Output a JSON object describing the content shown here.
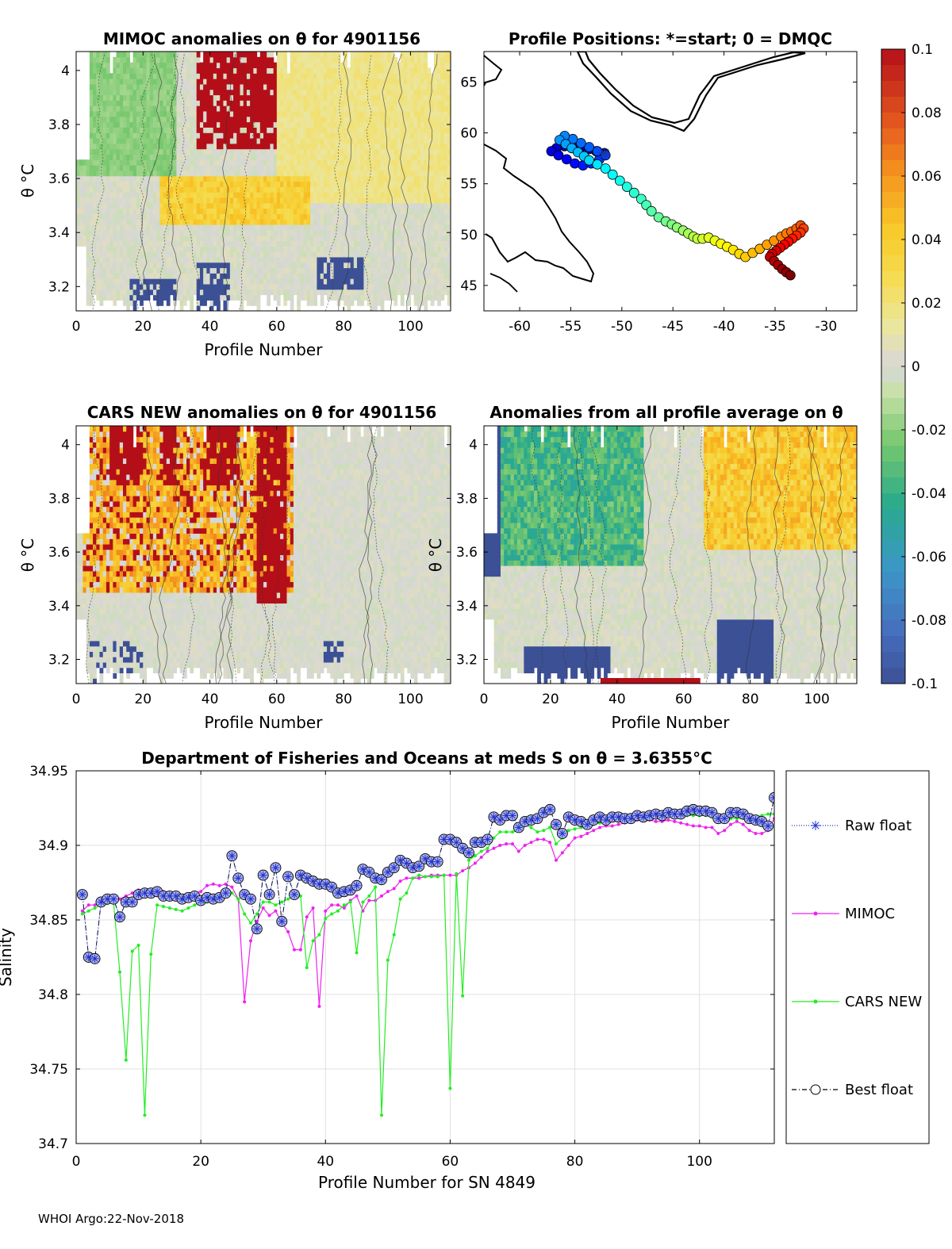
{
  "chart_data": [
    {
      "type": "heatmap",
      "title": "MIMOC anomalies on θ  for 4901156",
      "xlabel": "Profile Number",
      "ylabel": "θ °C",
      "xlim": [
        0,
        112
      ],
      "ylim": [
        3.11,
        4.07
      ],
      "xticks": [
        0,
        20,
        40,
        60,
        80,
        100
      ],
      "yticks": [
        3.2,
        3.4,
        3.6,
        3.8,
        4
      ],
      "description": "gridded anomaly field (profile number × theta), colored on shared colorbar",
      "warm_band": {
        "x_range": [
          25,
          70
        ],
        "theta_center": 3.52,
        "value": 0.04
      },
      "hot_patches": [
        {
          "x_range": [
            36,
            60
          ],
          "theta_range": [
            3.7,
            4.07
          ],
          "value": 0.1
        }
      ],
      "cold_patches": [
        {
          "x_range": [
            16,
            30
          ],
          "theta_range": [
            3.11,
            3.22
          ],
          "value": -0.1
        },
        {
          "x_range": [
            36,
            46
          ],
          "theta_range": [
            3.11,
            3.28
          ],
          "value": -0.1
        },
        {
          "x_range": [
            72,
            86
          ],
          "theta_range": [
            3.18,
            3.3
          ],
          "value": -0.1
        }
      ]
    },
    {
      "type": "scatter",
      "title": "Profile Positions: *=start; 0 = DMQC",
      "xlim": [
        -63.5,
        -27
      ],
      "ylim": [
        42.5,
        68
      ],
      "xticks": [
        -60,
        -55,
        -50,
        -45,
        -40,
        -35,
        -30
      ],
      "yticks": [
        45,
        50,
        55,
        60,
        65
      ],
      "x": [
        -51.7,
        -52.5,
        -53.2,
        -54,
        -54.8,
        -55.6,
        -56.4,
        -56.9,
        -56.2,
        -55.4,
        -54.6,
        -53.8,
        -53,
        -52.2,
        -51.6,
        -52.4,
        -53.2,
        -54,
        -54.8,
        -55.6,
        -56.1,
        -55.5,
        -54.9,
        -54.3,
        -53.7,
        -53.2,
        -52.4,
        -51.6,
        -50.9,
        -50.2,
        -49.5,
        -48.8,
        -48.1,
        -47.6,
        -47.1,
        -46.4,
        -45.7,
        -45.1,
        -44.6,
        -44,
        -43.5,
        -43,
        -42.6,
        -42.1,
        -41.5,
        -40.9,
        -40.3,
        -39.7,
        -39.1,
        -38.5,
        -37.9,
        -37.2,
        -36.5,
        -35.8,
        -35.1,
        -34.4,
        -33.9,
        -33.4,
        -32.9,
        -32.5,
        -32.2,
        -32.5,
        -32.9,
        -33.3,
        -33.7,
        -34.1,
        -34.5,
        -34.9,
        -35.3,
        -35.5,
        -35.1,
        -34.7,
        -34.3,
        -33.9,
        -33.5
      ],
      "y": [
        58,
        58.2,
        58.4,
        58.6,
        58.8,
        58.7,
        58.5,
        58.2,
        57.8,
        57.4,
        57,
        56.8,
        57,
        57.4,
        57.8,
        58.2,
        58.6,
        59,
        59.4,
        59.7,
        59.3,
        58.9,
        58.5,
        58.1,
        57.7,
        57.3,
        56.9,
        56.5,
        55.9,
        55.3,
        54.7,
        54.1,
        53.5,
        52.9,
        52.3,
        51.7,
        51.3,
        51,
        50.7,
        50.4,
        50.1,
        49.8,
        49.6,
        49.6,
        49.7,
        49.4,
        49.1,
        48.8,
        48.5,
        48.1,
        47.8,
        48.2,
        48.6,
        49,
        49.4,
        49.8,
        50.1,
        50.3,
        50.6,
        50.9,
        50.6,
        50.2,
        49.9,
        49.6,
        49.3,
        49,
        48.7,
        48.4,
        48.1,
        47.8,
        47.4,
        47,
        46.6,
        46.3,
        46
      ],
      "start_marker": [
        -51.7,
        58
      ],
      "color_by": "profile number"
    },
    {
      "type": "heatmap",
      "title": "CARS NEW anomalies on θ for 4901156",
      "xlabel": "Profile Number",
      "ylabel": "θ °C",
      "xlim": [
        0,
        112
      ],
      "ylim": [
        3.11,
        4.07
      ],
      "xticks": [
        0,
        20,
        40,
        60,
        80,
        100
      ],
      "yticks": [
        3.2,
        3.4,
        3.6,
        3.8,
        4
      ],
      "description": "gridded anomaly field with strong warm anomalies above theta 3.45 for profiles 2-65",
      "warm_band": {
        "x_range": [
          2,
          65
        ],
        "theta_range": [
          3.45,
          4.07
        ],
        "value": 0.05
      },
      "hot_patches": [
        {
          "x_range": [
            10,
            20
          ],
          "theta_range": [
            3.85,
            4.07
          ],
          "value": 0.1
        },
        {
          "x_range": [
            25,
            30
          ],
          "theta_range": [
            3.85,
            4.07
          ],
          "value": 0.1
        },
        {
          "x_range": [
            38,
            48
          ],
          "theta_range": [
            3.85,
            4.07
          ],
          "value": 0.1
        },
        {
          "x_range": [
            54,
            63
          ],
          "theta_range": [
            3.42,
            4.07
          ],
          "value": 0.1
        }
      ],
      "cold_patches": [
        {
          "x_range": [
            74,
            80
          ],
          "theta_range": [
            3.18,
            3.27
          ],
          "value": -0.1
        }
      ]
    },
    {
      "type": "heatmap",
      "title": "Anomalies from all profile average on θ",
      "xlabel": "Profile Number",
      "ylabel": "θ °C",
      "xlim": [
        0,
        112
      ],
      "ylim": [
        3.11,
        4.07
      ],
      "xticks": [
        0,
        20,
        40,
        60,
        80,
        100
      ],
      "yticks": [
        3.2,
        3.4,
        3.6,
        3.8,
        4
      ],
      "description": "negative anomalies (green) for profiles 2-48 above theta 3.55, positive (yellow/orange) for profiles 68-112 above theta 3.6",
      "green_region": {
        "x_range": [
          2,
          48
        ],
        "theta_range": [
          3.55,
          4.07
        ],
        "value": -0.03
      },
      "warm_region": {
        "x_range": [
          66,
          112
        ],
        "theta_range": [
          3.6,
          4.07
        ],
        "value": 0.04
      },
      "cold_region": {
        "x_range": [
          70,
          87
        ],
        "theta_range": [
          3.11,
          3.35
        ],
        "value": -0.1
      }
    },
    {
      "type": "line",
      "title": "Department of Fisheries and Oceans at meds S on θ = 3.6355°C",
      "xlabel": "Profile Number for SN 4849",
      "ylabel": "Salinity",
      "xlim": [
        0,
        112
      ],
      "ylim": [
        34.7,
        34.95
      ],
      "xticks": [
        0,
        20,
        40,
        60,
        80,
        100
      ],
      "yticks": [
        34.7,
        34.75,
        34.8,
        34.85,
        34.9,
        34.95
      ],
      "grid": true,
      "legend_position": "right-outside",
      "x": [
        1,
        2,
        3,
        4,
        5,
        6,
        7,
        8,
        9,
        10,
        11,
        12,
        13,
        14,
        15,
        16,
        17,
        18,
        19,
        20,
        21,
        22,
        23,
        24,
        25,
        26,
        27,
        28,
        29,
        30,
        31,
        32,
        33,
        34,
        35,
        36,
        37,
        38,
        39,
        40,
        41,
        42,
        43,
        44,
        45,
        46,
        47,
        48,
        49,
        50,
        51,
        52,
        53,
        54,
        55,
        56,
        57,
        58,
        59,
        60,
        61,
        62,
        63,
        64,
        65,
        66,
        67,
        68,
        69,
        70,
        71,
        72,
        73,
        74,
        75,
        76,
        77,
        78,
        79,
        80,
        81,
        82,
        83,
        84,
        85,
        86,
        87,
        88,
        89,
        90,
        91,
        92,
        93,
        94,
        95,
        96,
        97,
        98,
        99,
        100,
        101,
        102,
        103,
        104,
        105,
        106,
        107,
        108,
        109,
        110,
        111,
        112
      ],
      "series": [
        {
          "name": "Raw float",
          "color": "#2233cc",
          "marker": "*",
          "style": "dotted",
          "values": [
            34.867,
            34.825,
            34.824,
            34.862,
            34.864,
            34.864,
            34.852,
            34.862,
            34.862,
            34.867,
            34.868,
            34.868,
            34.869,
            34.866,
            34.866,
            34.866,
            34.864,
            34.865,
            34.866,
            34.863,
            34.865,
            34.864,
            34.865,
            34.868,
            34.893,
            34.878,
            34.867,
            34.864,
            34.844,
            34.88,
            34.867,
            34.885,
            34.849,
            34.879,
            34.867,
            34.88,
            34.878,
            34.876,
            34.874,
            34.874,
            34.872,
            34.868,
            34.869,
            34.87,
            34.873,
            34.884,
            34.882,
            34.878,
            34.877,
            34.882,
            34.885,
            34.89,
            34.888,
            34.885,
            34.886,
            34.891,
            34.889,
            34.889,
            34.904,
            34.904,
            34.902,
            34.898,
            34.895,
            34.902,
            34.902,
            34.904,
            34.919,
            34.917,
            34.92,
            34.92,
            34.912,
            34.916,
            34.917,
            34.918,
            34.922,
            34.924,
            34.914,
            34.908,
            34.919,
            34.917,
            34.916,
            34.914,
            34.917,
            34.919,
            34.917,
            34.919,
            34.919,
            34.918,
            34.918,
            34.92,
            34.919,
            34.92,
            34.921,
            34.92,
            34.922,
            34.921,
            34.921,
            34.923,
            34.924,
            34.923,
            34.923,
            34.922,
            34.918,
            34.918,
            34.922,
            34.922,
            34.921,
            34.918,
            34.917,
            34.916,
            34.913,
            34.932
          ]
        },
        {
          "name": "MIMOC",
          "color": "#ee22ee",
          "marker": ".",
          "style": "solid",
          "values": [
            34.856,
            34.86,
            34.86,
            34.862,
            34.863,
            34.864,
            34.864,
            34.866,
            34.868,
            34.87,
            34.869,
            34.869,
            34.869,
            34.869,
            34.868,
            34.868,
            34.866,
            34.866,
            34.868,
            34.869,
            34.873,
            34.874,
            34.873,
            34.874,
            34.872,
            34.864,
            34.795,
            34.836,
            34.849,
            34.858,
            34.853,
            34.856,
            34.848,
            34.842,
            34.83,
            34.83,
            34.852,
            34.858,
            34.792,
            34.856,
            34.86,
            34.86,
            34.858,
            34.863,
            34.866,
            34.856,
            34.863,
            34.863,
            34.866,
            34.869,
            34.871,
            34.876,
            34.878,
            34.878,
            34.878,
            34.879,
            34.88,
            34.88,
            34.88,
            34.88,
            34.88,
            34.883,
            34.885,
            34.888,
            34.892,
            34.896,
            34.898,
            34.9,
            34.901,
            34.901,
            34.896,
            34.9,
            34.902,
            34.904,
            34.904,
            34.902,
            34.89,
            34.895,
            34.9,
            34.905,
            34.906,
            34.908,
            34.91,
            34.912,
            34.913,
            34.913,
            34.914,
            34.915,
            34.916,
            34.917,
            34.917,
            34.917,
            34.916,
            34.916,
            34.917,
            34.916,
            34.915,
            34.914,
            34.913,
            34.913,
            34.912,
            34.912,
            34.908,
            34.91,
            34.914,
            34.916,
            34.914,
            34.91,
            34.908,
            34.908,
            34.91,
            34.918
          ]
        },
        {
          "name": "CARS NEW",
          "color": "#22ee22",
          "marker": ".",
          "style": "solid",
          "values": [
            34.854,
            34.856,
            34.858,
            34.86,
            34.861,
            34.862,
            34.815,
            34.756,
            34.829,
            34.833,
            34.719,
            34.827,
            34.86,
            34.859,
            34.858,
            34.857,
            34.856,
            34.858,
            34.86,
            34.862,
            34.862,
            34.864,
            34.866,
            34.868,
            34.868,
            34.864,
            34.854,
            34.848,
            34.854,
            34.862,
            34.862,
            34.86,
            34.862,
            34.864,
            34.866,
            34.866,
            34.818,
            34.836,
            34.84,
            34.851,
            34.854,
            34.856,
            34.86,
            34.862,
            34.828,
            34.862,
            34.866,
            34.872,
            34.719,
            34.823,
            34.84,
            34.864,
            34.868,
            34.878,
            34.88,
            34.879,
            34.879,
            34.879,
            34.88,
            34.737,
            34.881,
            34.799,
            34.89,
            34.893,
            34.896,
            34.898,
            34.905,
            34.909,
            34.909,
            34.909,
            34.91,
            34.914,
            34.912,
            34.909,
            34.91,
            34.912,
            34.901,
            34.905,
            34.91,
            34.911,
            34.912,
            34.913,
            34.914,
            34.915,
            34.916,
            34.917,
            34.918,
            34.918,
            34.918,
            34.919,
            34.919,
            34.919,
            34.92,
            34.921,
            34.921,
            34.921,
            34.922,
            34.92,
            34.92,
            34.92,
            34.92,
            34.919,
            34.918,
            34.918,
            34.918,
            34.918,
            34.918,
            34.918,
            34.919,
            34.92,
            34.921,
            34.921
          ]
        },
        {
          "name": "Best float",
          "color": "#000000",
          "marker": "o",
          "style": "dashdot",
          "values": [
            34.867,
            34.825,
            34.824,
            34.862,
            34.864,
            34.864,
            34.852,
            34.862,
            34.862,
            34.867,
            34.868,
            34.868,
            34.869,
            34.866,
            34.866,
            34.866,
            34.864,
            34.865,
            34.866,
            34.863,
            34.865,
            34.864,
            34.865,
            34.868,
            34.893,
            34.878,
            34.867,
            34.864,
            34.844,
            34.88,
            34.867,
            34.885,
            34.849,
            34.879,
            34.867,
            34.88,
            34.878,
            34.876,
            34.874,
            34.874,
            34.872,
            34.868,
            34.869,
            34.87,
            34.873,
            34.884,
            34.882,
            34.878,
            34.877,
            34.882,
            34.885,
            34.89,
            34.888,
            34.885,
            34.886,
            34.891,
            34.889,
            34.889,
            34.904,
            34.904,
            34.902,
            34.898,
            34.895,
            34.902,
            34.902,
            34.904,
            34.919,
            34.917,
            34.92,
            34.92,
            34.912,
            34.916,
            34.917,
            34.918,
            34.922,
            34.924,
            34.914,
            34.908,
            34.919,
            34.917,
            34.916,
            34.914,
            34.917,
            34.919,
            34.917,
            34.919,
            34.919,
            34.918,
            34.918,
            34.92,
            34.919,
            34.92,
            34.921,
            34.92,
            34.922,
            34.921,
            34.921,
            34.923,
            34.924,
            34.923,
            34.923,
            34.922,
            34.918,
            34.918,
            34.922,
            34.922,
            34.921,
            34.918,
            34.917,
            34.916,
            34.913,
            34.932
          ]
        }
      ]
    }
  ],
  "colorbar": {
    "ticks": [
      "0.1",
      "0.08",
      "0.06",
      "0.04",
      "0.02",
      "0",
      "-0.02",
      "-0.04",
      "-0.06",
      "-0.08",
      "-0.1"
    ],
    "range": [
      -0.1,
      0.1
    ]
  },
  "footer": "WHOI Argo:22-Nov-2018"
}
